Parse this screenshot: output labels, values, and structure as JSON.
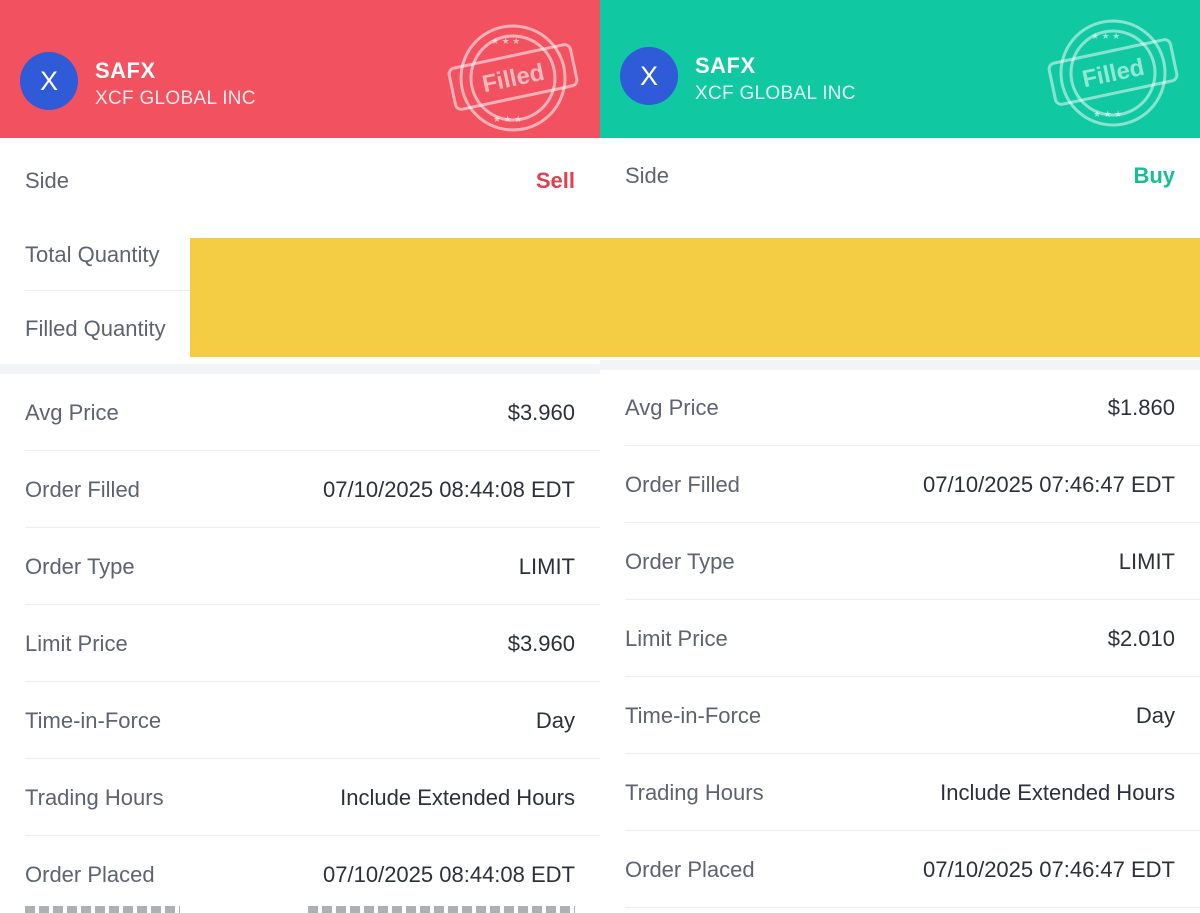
{
  "left": {
    "header_color": "#f2515f",
    "avatar_letter": "X",
    "ticker": "SAFX",
    "company": "XCF GLOBAL INC",
    "stamp_text": "Filled",
    "side": {
      "label": "Side",
      "value": "Sell",
      "color": "#e0404f"
    },
    "total_quantity_label": "Total Quantity",
    "filled_quantity_label": "Filled Quantity",
    "details": [
      {
        "label": "Avg Price",
        "value": "$3.960"
      },
      {
        "label": "Order Filled",
        "value": "07/10/2025 08:44:08 EDT"
      },
      {
        "label": "Order Type",
        "value": "LIMIT"
      },
      {
        "label": "Limit Price",
        "value": "$3.960"
      },
      {
        "label": "Time-in-Force",
        "value": "Day"
      },
      {
        "label": "Trading Hours",
        "value": "Include Extended Hours"
      },
      {
        "label": "Order Placed",
        "value": "07/10/2025 08:44:08 EDT"
      }
    ]
  },
  "right": {
    "header_color": "#10c9a3",
    "avatar_letter": "X",
    "ticker": "SAFX",
    "company": "XCF GLOBAL INC",
    "stamp_text": "Filled",
    "side": {
      "label": "Side",
      "value": "Buy",
      "color": "#17bd95"
    },
    "details": [
      {
        "label": "Avg Price",
        "value": "$1.860"
      },
      {
        "label": "Order Filled",
        "value": "07/10/2025 07:46:47 EDT"
      },
      {
        "label": "Order Type",
        "value": "LIMIT"
      },
      {
        "label": "Limit Price",
        "value": "$2.010"
      },
      {
        "label": "Time-in-Force",
        "value": "Day"
      },
      {
        "label": "Trading Hours",
        "value": "Include Extended Hours"
      },
      {
        "label": "Order Placed",
        "value": "07/10/2025 07:46:47 EDT"
      }
    ]
  },
  "redaction_color": "#f4cd45",
  "avatar_color": "#2f5ad8"
}
